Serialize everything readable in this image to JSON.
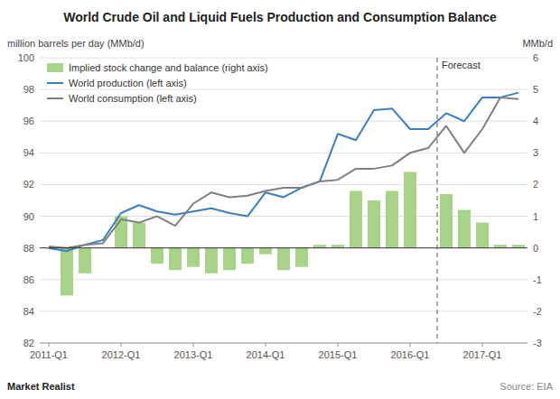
{
  "chart_data": {
    "type": "combo",
    "title": "World Crude Oil and Liquid Fuels Production and Consumption Balance",
    "ylabel": "million barrels per day (MMb/d)",
    "y2label": "MMb/d",
    "categories": [
      "2011-Q1",
      null,
      null,
      null,
      "2012-Q1",
      null,
      null,
      null,
      "2013-Q1",
      null,
      null,
      null,
      "2014-Q1",
      null,
      null,
      null,
      "2015-Q1",
      null,
      null,
      null,
      "2016-Q1",
      null,
      null,
      null,
      "2017-Q1",
      null,
      null
    ],
    "series": [
      {
        "name": "Implied stock change and balance (right axis)",
        "type": "bar",
        "axis": "y2",
        "color": "#a8d48a",
        "values": [
          0.0,
          -1.5,
          -0.8,
          0.0,
          1.0,
          0.8,
          -0.5,
          -0.7,
          -0.6,
          -0.8,
          -0.7,
          -0.5,
          -0.2,
          -0.7,
          -0.6,
          0.1,
          0.1,
          1.8,
          1.5,
          1.8,
          2.4,
          0.0,
          1.7,
          1.2,
          0.8,
          0.1,
          0.1
        ]
      },
      {
        "name": "World production (left axis)",
        "type": "line",
        "color": "#3a7fc1",
        "values": [
          88.0,
          87.8,
          88.2,
          88.5,
          90.2,
          90.7,
          90.3,
          90.1,
          90.3,
          90.5,
          90.2,
          90.0,
          91.5,
          91.2,
          91.8,
          92.2,
          95.2,
          94.8,
          96.7,
          96.8,
          95.5,
          95.5,
          96.5,
          96.0,
          97.5,
          97.5,
          97.8
        ]
      },
      {
        "name": "World consumption (left axis)",
        "type": "line",
        "color": "#808080",
        "values": [
          88.1,
          88.0,
          88.2,
          88.3,
          89.8,
          89.6,
          90.0,
          89.4,
          90.8,
          91.5,
          91.2,
          91.3,
          91.6,
          91.8,
          91.8,
          92.2,
          92.3,
          93.0,
          93.0,
          93.2,
          94.0,
          94.3,
          95.7,
          94.0,
          95.5,
          97.5,
          97.4
        ]
      }
    ],
    "ylim": [
      82,
      100
    ],
    "yticks": [
      82,
      84,
      86,
      88,
      90,
      92,
      94,
      96,
      98,
      100
    ],
    "y2lim": [
      -3,
      6
    ],
    "y2ticks": [
      -3,
      -2,
      -1,
      0,
      1,
      2,
      3,
      4,
      5,
      6
    ],
    "grid": true,
    "legend": "upper left",
    "annotations": [
      {
        "text": "Forecast",
        "x": 21.5,
        "line_style": "dashed"
      },
      {
        "text": "Market Realist"
      },
      {
        "text": "Source: EIA"
      }
    ]
  }
}
